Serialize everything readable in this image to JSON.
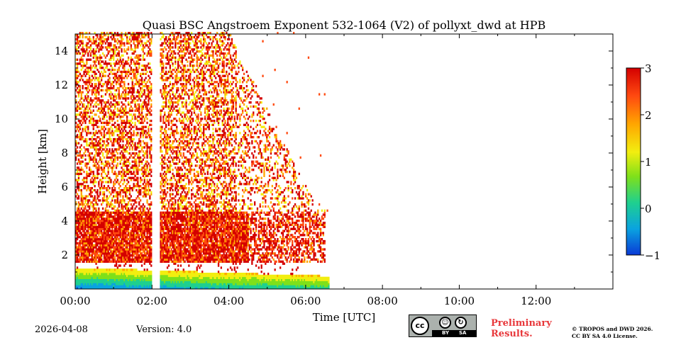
{
  "chart_data": {
    "type": "heatmap",
    "title": "Quasi BSC Angstroem Exponent 532-1064 (V2) of pollyxt_dwd at HPB",
    "xlabel": "Time [UTC]",
    "ylabel": "Height [km]",
    "x_range_hours": [
      0,
      14
    ],
    "y_range_km": [
      0,
      15
    ],
    "x_ticks": [
      {
        "value": 0,
        "label": "00:00"
      },
      {
        "value": 2,
        "label": "02:00"
      },
      {
        "value": 4,
        "label": "04:00"
      },
      {
        "value": 6,
        "label": "06:00"
      },
      {
        "value": 8,
        "label": "08:00"
      },
      {
        "value": 10,
        "label": "10:00"
      },
      {
        "value": 12,
        "label": "12:00"
      }
    ],
    "y_ticks": [
      {
        "value": 2,
        "label": "2"
      },
      {
        "value": 4,
        "label": "4"
      },
      {
        "value": 6,
        "label": "6"
      },
      {
        "value": 8,
        "label": "8"
      },
      {
        "value": 10,
        "label": "10"
      },
      {
        "value": 12,
        "label": "12"
      },
      {
        "value": 14,
        "label": "14"
      }
    ],
    "colorbar": {
      "range": [
        -1,
        3
      ],
      "ticks": [
        {
          "value": 3,
          "label": "3"
        },
        {
          "value": 2,
          "label": "2"
        },
        {
          "value": 1,
          "label": "1"
        },
        {
          "value": 0,
          "label": "0"
        },
        {
          "value": -1,
          "label": "−1"
        }
      ],
      "colors": [
        "#0a3ad6",
        "#0aa3e0",
        "#1fd08f",
        "#7fe01a",
        "#f2ee10",
        "#ffa600",
        "#ff4a10",
        "#d40000"
      ]
    },
    "data_gap_hours": [
      2.0,
      2.18
    ],
    "data_end_hours": 6.6,
    "layers": [
      {
        "name": "near-surface layer",
        "top_km_start": 1.2,
        "top_km_end": 0.7,
        "value": 1.0
      },
      {
        "name": "aerosol layer",
        "from_km": 1.5,
        "to_km": 4.5,
        "value": 2.6
      },
      {
        "name": "upper noise",
        "from_km": 4.5,
        "to_km": 15,
        "value": 2.3
      }
    ]
  },
  "footer": {
    "date": "2026-04-08",
    "version": "Version: 4.0",
    "license_badge": {
      "cc": "cc",
      "by": "BY",
      "sa": "SA"
    },
    "preliminary_line1": "Preliminary",
    "preliminary_line2": "Results.",
    "copyright_line1": "© TROPOS and DWD 2026.",
    "copyright_line2": "CC BY SA 4.0 License."
  }
}
